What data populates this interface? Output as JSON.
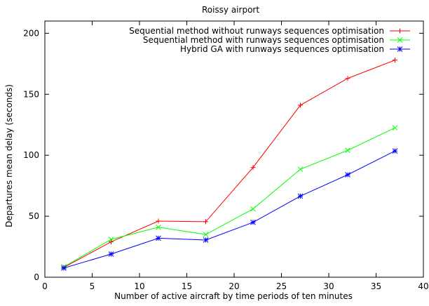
{
  "chart_data": {
    "type": "line",
    "title": "Roissy airport",
    "xlabel": "Number of active aircraft by time periods of ten minutes",
    "ylabel": "Departures mean delay (seconds)",
    "xlim": [
      0,
      40
    ],
    "ylim": [
      0,
      210
    ],
    "xticks": [
      0,
      5,
      10,
      15,
      20,
      25,
      30,
      35,
      40
    ],
    "yticks": [
      0,
      50,
      100,
      150,
      200
    ],
    "grid": false,
    "legend_position": "top-right",
    "x": [
      2,
      7,
      12,
      17,
      22,
      27,
      32,
      37
    ],
    "series": [
      {
        "name": "Sequential method without runways sequences optimisation",
        "color": "#ff0000",
        "marker": "plus",
        "values": [
          8,
          29,
          46,
          45.5,
          90,
          141,
          163,
          178
        ]
      },
      {
        "name": "Sequential method with runways sequences optimisation",
        "color": "#00ff00",
        "marker": "cross",
        "values": [
          8.5,
          31,
          41,
          35,
          56,
          88.5,
          104,
          122.5
        ]
      },
      {
        "name": "Hybrid GA with runways sequences optimisation",
        "color": "#0000ff",
        "marker": "star",
        "values": [
          7.5,
          19,
          32,
          30.5,
          45,
          66.5,
          84,
          103.5
        ]
      }
    ]
  }
}
